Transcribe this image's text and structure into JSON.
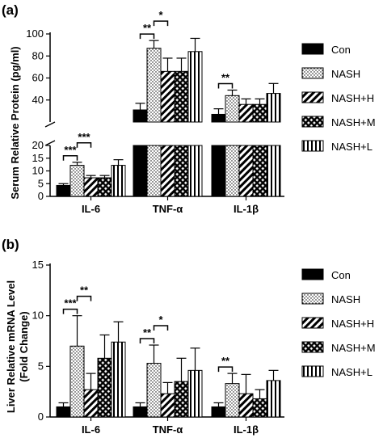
{
  "figure": {
    "panels": [
      {
        "label": "(a)",
        "ylabel": "Serum Relative Protein (pg/ml)",
        "legend": [
          "Con",
          "NASH",
          "NASH+H",
          "NASH+M",
          "NASH+L"
        ]
      },
      {
        "label": "(b)",
        "ylabel_line1": "Liver Relative mRNA Level",
        "ylabel_line2": "(Fold Change)",
        "legend": [
          "Con",
          "NASH",
          "NASH+H",
          "NASH+M",
          "NASH+L"
        ]
      }
    ]
  },
  "chart_data": [
    {
      "type": "bar",
      "title": "",
      "ylabel": "Serum Relative Protein (pg/ml)",
      "categories": [
        "IL-6",
        "TNF-α",
        "IL-1β"
      ],
      "broken_axis": true,
      "ylim_lower": [
        0,
        20
      ],
      "ylim_upper": [
        20,
        100
      ],
      "yticks_lower": [
        0,
        5,
        10,
        15,
        20
      ],
      "yticks_upper": [
        20,
        40,
        60,
        80,
        100
      ],
      "legend_position": "right",
      "series": [
        {
          "name": "Con",
          "pattern": "solid",
          "values": [
            4.3,
            31,
            27
          ],
          "errors": [
            0.7,
            6,
            5
          ]
        },
        {
          "name": "NASH",
          "pattern": "dots",
          "values": [
            12.2,
            87,
            44
          ],
          "errors": [
            1.2,
            7,
            5
          ]
        },
        {
          "name": "NASH+H",
          "pattern": "diagonal",
          "values": [
            7.3,
            66,
            36
          ],
          "errors": [
            0.9,
            12,
            5
          ]
        },
        {
          "name": "NASH+M",
          "pattern": "crosshatch",
          "values": [
            7.3,
            66,
            36
          ],
          "errors": [
            0.9,
            12,
            5
          ]
        },
        {
          "name": "NASH+L",
          "pattern": "vertical",
          "values": [
            12.2,
            84,
            46
          ],
          "errors": [
            2.2,
            12,
            9
          ]
        }
      ],
      "significance": [
        {
          "category": "IL-6",
          "from": 0,
          "to": 1,
          "label": "***",
          "level": 1
        },
        {
          "category": "IL-6",
          "from": 1,
          "to": 2,
          "label": "***",
          "level": 2
        },
        {
          "category": "TNF-α",
          "from": 0,
          "to": 1,
          "label": "**",
          "level": 1
        },
        {
          "category": "TNF-α",
          "from": 1,
          "to": 2,
          "label": "*",
          "level": 2
        },
        {
          "category": "IL-1β",
          "from": 0,
          "to": 1,
          "label": "**",
          "level": 1
        }
      ]
    },
    {
      "type": "bar",
      "title": "",
      "ylabel": "Liver Relative mRNA Level (Fold Change)",
      "categories": [
        "IL-6",
        "TNF-α",
        "IL-1β"
      ],
      "ylim": [
        0,
        15
      ],
      "yticks": [
        0,
        5,
        10,
        15
      ],
      "legend_position": "right",
      "series": [
        {
          "name": "Con",
          "pattern": "solid",
          "values": [
            1.0,
            1.0,
            1.0
          ],
          "errors": [
            0.4,
            0.4,
            0.4
          ]
        },
        {
          "name": "NASH",
          "pattern": "dots",
          "values": [
            7.0,
            5.3,
            3.3
          ],
          "errors": [
            3.0,
            1.8,
            1.0
          ]
        },
        {
          "name": "NASH+H",
          "pattern": "diagonal",
          "values": [
            2.7,
            2.3,
            2.3
          ],
          "errors": [
            1.6,
            1.1,
            1.9
          ]
        },
        {
          "name": "NASH+M",
          "pattern": "crosshatch",
          "values": [
            5.8,
            3.5,
            1.8
          ],
          "errors": [
            2.3,
            2.3,
            0.9
          ]
        },
        {
          "name": "NASH+L",
          "pattern": "vertical",
          "values": [
            7.4,
            4.6,
            3.6
          ],
          "errors": [
            2.0,
            2.2,
            1.0
          ]
        }
      ],
      "significance": [
        {
          "category": "IL-6",
          "from": 0,
          "to": 1,
          "label": "***",
          "level": 1
        },
        {
          "category": "IL-6",
          "from": 1,
          "to": 2,
          "label": "**",
          "level": 2
        },
        {
          "category": "TNF-α",
          "from": 0,
          "to": 1,
          "label": "**",
          "level": 1
        },
        {
          "category": "TNF-α",
          "from": 1,
          "to": 2,
          "label": "*",
          "level": 2
        },
        {
          "category": "IL-1β",
          "from": 0,
          "to": 1,
          "label": "**",
          "level": 1
        }
      ]
    }
  ]
}
